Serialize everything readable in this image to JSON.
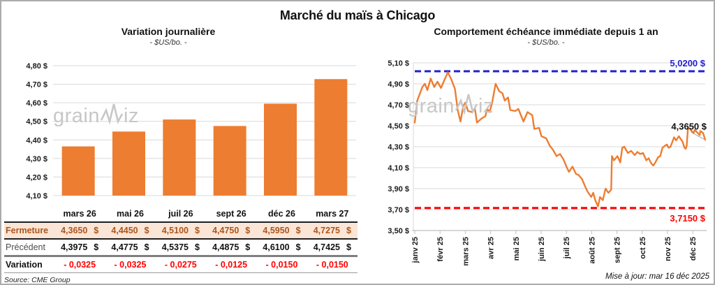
{
  "page": {
    "title": "Marché du maïs à Chicago",
    "source": "Source: CME Group",
    "updated": "Mise à jour: mar 16 déc 2025"
  },
  "watermark": {
    "part1": "grain",
    "part2": "iz"
  },
  "colors": {
    "orange": "#ED7D31",
    "blue": "#2121CE",
    "red": "#FF0000",
    "grid": "#D9D9D9",
    "axis": "#BFBFBF",
    "fermeture_bg": "#FBE5D6",
    "fermeture_text": "#AC561C",
    "leader": "#9a9a9a"
  },
  "chart_data": [
    {
      "id": "variation-journaliere",
      "type": "bar",
      "title": "Variation journalière",
      "subtitle": "- $US/bo. -",
      "categories": [
        "mars 26",
        "mai 26",
        "juil 26",
        "sept 26",
        "déc 26",
        "mars 27"
      ],
      "values": [
        4.365,
        4.445,
        4.51,
        4.475,
        4.595,
        4.7275
      ],
      "ylim": [
        4.1,
        4.8
      ],
      "ytick_step": 0.1,
      "ytick_labels": [
        "4,80 $",
        "4,70 $",
        "4,60 $",
        "4,50 $",
        "4,40 $",
        "4,30 $",
        "4,20 $",
        "4,10 $"
      ],
      "bar_color": "#ED7D31",
      "grid": true,
      "legend": false
    },
    {
      "id": "echeance-immediate-1an",
      "type": "line",
      "title": "Comportement échéance immédiate depuis 1 an",
      "subtitle": "- $US/bo. -",
      "x_labels": [
        "janv 25",
        "févr 25",
        "mars 25",
        "avr 25",
        "mai 25",
        "juin 25",
        "juil 25",
        "août 25",
        "sept 25",
        "oct 25",
        "nov 25",
        "déc 25"
      ],
      "ylim": [
        3.5,
        5.1
      ],
      "ytick_step": 0.2,
      "ytick_labels": [
        "5,10 $",
        "4,90 $",
        "4,70 $",
        "4,50 $",
        "4,30 $",
        "4,10 $",
        "3,90 $",
        "3,70 $",
        "3,50 $"
      ],
      "line_color": "#ED7D31",
      "high_line": {
        "value": 5.02,
        "label": "5,0200 $",
        "color": "#2121CE"
      },
      "low_line": {
        "value": 3.715,
        "label": "3,7150 $",
        "color": "#FF0000"
      },
      "last_value_label": "4,3650 $",
      "grid": true,
      "legend": false,
      "series": [
        {
          "name": "échéance immédiate",
          "x": [
            0.0,
            0.1,
            0.3,
            0.4,
            0.5,
            0.63,
            0.77,
            0.9,
            1.04,
            1.18,
            1.31,
            1.45,
            1.59,
            1.7,
            1.81,
            1.92,
            2.0,
            2.11,
            2.27,
            2.38,
            2.46,
            2.65,
            2.79,
            2.87,
            2.96,
            3.06,
            3.2,
            3.34,
            3.47,
            3.56,
            3.69,
            3.78,
            3.97,
            4.1,
            4.3,
            4.46,
            4.65,
            4.73,
            4.92,
            5.01,
            5.2,
            5.34,
            5.47,
            5.61,
            5.75,
            5.88,
            6.02,
            6.1,
            6.24,
            6.38,
            6.48,
            6.62,
            6.76,
            6.84,
            6.98,
            7.06,
            7.14,
            7.25,
            7.33,
            7.44,
            7.55,
            7.66,
            7.77,
            7.8,
            7.88,
            8.02,
            8.13,
            8.21,
            8.29,
            8.43,
            8.56,
            8.7,
            8.81,
            8.92,
            9.03,
            9.16,
            9.25,
            9.36,
            9.44,
            9.52,
            9.63,
            9.71,
            9.8,
            9.9,
            9.98,
            10.04,
            10.12,
            10.2,
            10.26,
            10.34,
            10.45,
            10.53,
            10.59,
            10.67,
            10.72,
            10.76,
            10.81,
            10.89,
            10.95,
            11.03,
            11.08,
            11.16,
            11.27,
            11.3,
            11.41,
            11.49
          ],
          "y": [
            4.53,
            4.74,
            4.87,
            4.9,
            4.84,
            4.95,
            4.87,
            4.92,
            4.86,
            4.94,
            5.01,
            4.94,
            4.85,
            4.65,
            4.54,
            4.69,
            4.72,
            4.64,
            4.63,
            4.66,
            4.53,
            4.57,
            4.59,
            4.66,
            4.63,
            4.72,
            4.9,
            4.83,
            4.81,
            4.74,
            4.77,
            4.65,
            4.64,
            4.66,
            4.54,
            4.63,
            4.6,
            4.47,
            4.48,
            4.4,
            4.38,
            4.31,
            4.27,
            4.21,
            4.23,
            4.18,
            4.1,
            4.06,
            4.11,
            4.04,
            4.03,
            3.99,
            3.91,
            3.87,
            3.82,
            3.86,
            3.79,
            3.73,
            3.82,
            3.79,
            3.9,
            3.86,
            3.89,
            4.21,
            4.17,
            4.21,
            4.15,
            4.29,
            4.3,
            4.24,
            4.26,
            4.22,
            4.25,
            4.23,
            4.24,
            4.17,
            4.19,
            4.14,
            4.12,
            4.15,
            4.2,
            4.21,
            4.29,
            4.31,
            4.32,
            4.29,
            4.3,
            4.35,
            4.39,
            4.36,
            4.4,
            4.37,
            4.35,
            4.29,
            4.28,
            4.31,
            4.48,
            4.47,
            4.45,
            4.43,
            4.46,
            4.44,
            4.41,
            4.45,
            4.43,
            4.365
          ]
        }
      ]
    }
  ],
  "table": {
    "currency": "$",
    "rows": [
      {
        "label": "Fermeture",
        "values": [
          "4,3650",
          "4,4450",
          "4,5100",
          "4,4750",
          "4,5950",
          "4,7275"
        ]
      },
      {
        "label": "Précédent",
        "values": [
          "4,3975",
          "4,4775",
          "4,5375",
          "4,4875",
          "4,6100",
          "4,7425"
        ]
      },
      {
        "label": "Variation",
        "values": [
          "- 0,0325",
          "- 0,0325",
          "- 0,0275",
          "- 0,0125",
          "- 0,0150",
          "- 0,0150"
        ]
      }
    ]
  }
}
